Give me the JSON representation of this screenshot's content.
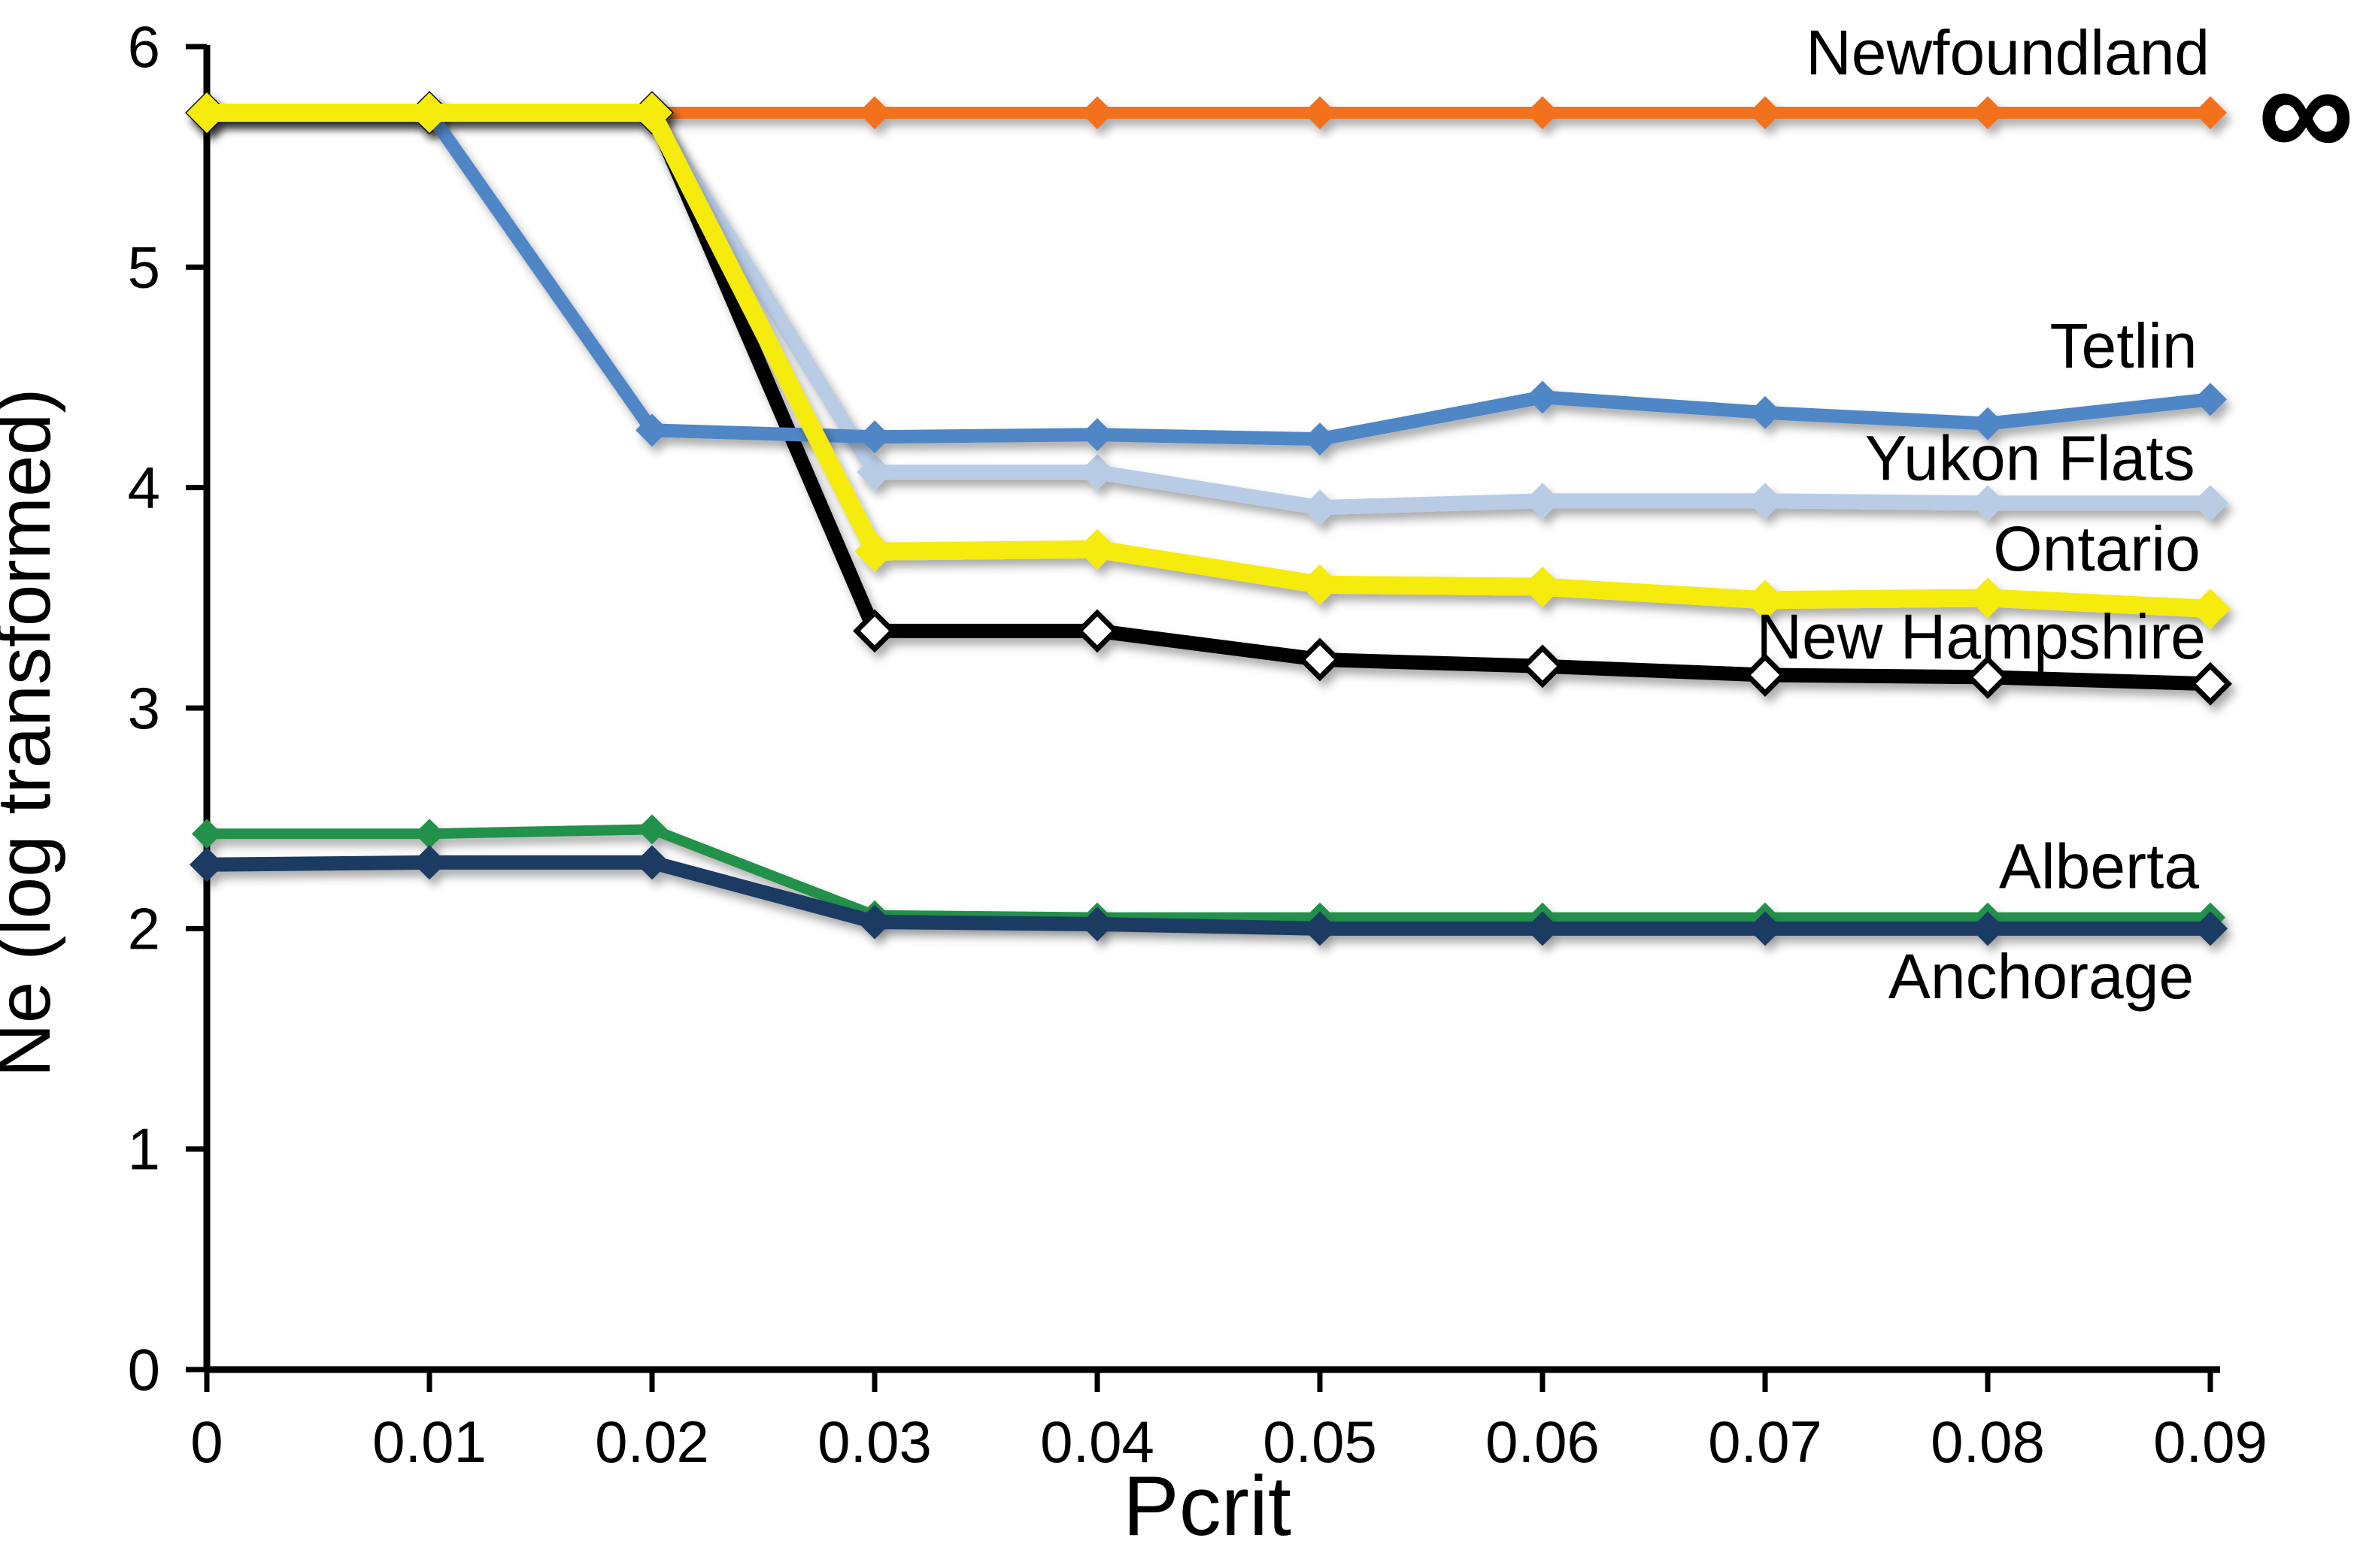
{
  "chart_data": {
    "type": "line",
    "title": "",
    "xlabel": "Pcrit",
    "ylabel": "Ne (log transformed)",
    "xlim": [
      0,
      0.09
    ],
    "ylim": [
      0,
      6
    ],
    "grid": false,
    "legend_position": "direct-labels-right",
    "x": [
      0,
      0.01,
      0.02,
      0.03,
      0.04,
      0.05,
      0.06,
      0.07,
      0.08,
      0.09
    ],
    "x_tick_labels": [
      "0",
      "0.01",
      "0.02",
      "0.03",
      "0.04",
      "0.05",
      "0.06",
      "0.07",
      "0.08",
      "0.09"
    ],
    "y_ticks": [
      0,
      1,
      2,
      3,
      4,
      5,
      6
    ],
    "series": [
      {
        "name": "Newfoundland",
        "color": "#F2711F",
        "marker": "diamond",
        "marker_size": 22,
        "stroke_width": 16,
        "note": "Ne is infinite (∞); plotted as flat line at top of axis",
        "values": [
          5.7,
          5.7,
          5.7,
          5.7,
          5.7,
          5.7,
          5.7,
          5.7,
          5.7,
          5.7
        ]
      },
      {
        "name": "Tetlin",
        "color": "#4F86C6",
        "marker": "diamond",
        "marker_size": 22,
        "stroke_width": 18,
        "values": [
          5.7,
          5.7,
          4.26,
          4.23,
          4.24,
          4.22,
          4.41,
          4.34,
          4.29,
          4.4
        ]
      },
      {
        "name": "Yukon Flats",
        "color": "#B9CCE6",
        "marker": "diamond",
        "marker_size": 24,
        "stroke_width": 20,
        "values": [
          5.7,
          5.7,
          5.7,
          4.07,
          4.07,
          3.91,
          3.94,
          3.94,
          3.93,
          3.93
        ]
      },
      {
        "name": "Ontario",
        "color": "#F5EB0F",
        "marker": "diamond",
        "marker_size": 27,
        "stroke_width": 24,
        "values": [
          5.7,
          5.7,
          5.7,
          3.71,
          3.72,
          3.56,
          3.55,
          3.49,
          3.5,
          3.45
        ]
      },
      {
        "name": "New Hampshire",
        "color": "#000000",
        "marker": "diamond-open-white",
        "marker_size": 24,
        "stroke_width": 19,
        "values": [
          5.7,
          5.7,
          5.7,
          3.35,
          3.35,
          3.22,
          3.19,
          3.15,
          3.14,
          3.11
        ]
      },
      {
        "name": "Alberta",
        "color": "#23914A",
        "marker": "diamond",
        "marker_size": 20,
        "stroke_width": 14,
        "values": [
          2.43,
          2.43,
          2.45,
          2.06,
          2.05,
          2.05,
          2.05,
          2.05,
          2.05,
          2.05
        ]
      },
      {
        "name": "Anchorage",
        "color": "#1F3A63",
        "marker": "diamond",
        "marker_size": 23,
        "stroke_width": 19,
        "values": [
          2.29,
          2.3,
          2.3,
          2.03,
          2.02,
          2.0,
          2.0,
          2.0,
          2.0,
          2.0
        ]
      }
    ],
    "draw_order": [
      "Newfoundland",
      "Yukon Flats",
      "Alberta",
      "Anchorage",
      "New Hampshire",
      "Tetlin",
      "Ontario"
    ],
    "annotations": [
      {
        "text": "Newfoundland",
        "x": 0.0809,
        "y": 5.95,
        "style": "series-label",
        "name": "series-label-newfoundland"
      },
      {
        "text": "∞",
        "x": 0.0943,
        "y": 5.66,
        "style": "infinity",
        "name": "infinity-symbol"
      },
      {
        "text": "Tetlin",
        "x": 0.0861,
        "y": 4.62,
        "style": "series-label",
        "name": "series-label-tetlin"
      },
      {
        "text": "Yukon Flats",
        "x": 0.0819,
        "y": 4.11,
        "style": "series-label",
        "name": "series-label-yukon-flats"
      },
      {
        "text": "Ontario",
        "x": 0.0849,
        "y": 3.7,
        "style": "series-label",
        "name": "series-label-ontario"
      },
      {
        "text": "New Hampshire",
        "x": 0.0797,
        "y": 3.3,
        "style": "series-label",
        "name": "series-label-new-hampshire"
      },
      {
        "text": "Alberta",
        "x": 0.085,
        "y": 2.26,
        "style": "series-label",
        "name": "series-label-alberta"
      },
      {
        "text": "Anchorage",
        "x": 0.0824,
        "y": 1.76,
        "style": "series-label",
        "name": "series-label-anchorage"
      }
    ]
  }
}
